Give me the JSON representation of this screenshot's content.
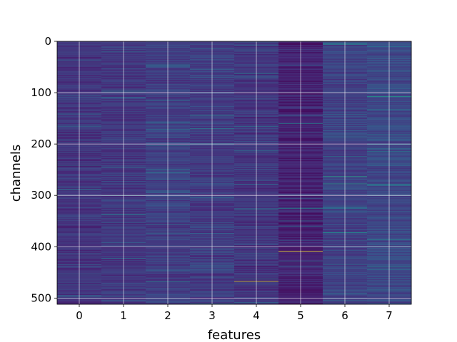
{
  "chart_data": {
    "type": "heatmap",
    "title": "",
    "xlabel": "features",
    "ylabel": "channels",
    "x_ticks": [
      "0",
      "1",
      "2",
      "3",
      "4",
      "5",
      "6",
      "7"
    ],
    "y_ticks": [
      "0",
      "100",
      "200",
      "300",
      "400",
      "500"
    ],
    "n_columns": 8,
    "n_rows": 512,
    "ylim": [
      0,
      512
    ],
    "y_inverted": true,
    "grid": true,
    "colormap": "viridis",
    "column_base_level": [
      0.16,
      0.17,
      0.19,
      0.18,
      0.16,
      0.1,
      0.2,
      0.22
    ],
    "highlights": [
      {
        "column": 4,
        "row": 467,
        "level": 0.95
      },
      {
        "column": 5,
        "row": 408,
        "level": 1.0
      },
      {
        "column": 6,
        "row": 263,
        "level": 0.6
      },
      {
        "column": 6,
        "row": 277,
        "level": 0.55
      },
      {
        "column": 6,
        "row": 372,
        "level": 0.5
      },
      {
        "column": 7,
        "row": 107,
        "level": 0.55
      },
      {
        "column": 7,
        "row": 278,
        "level": 0.5
      },
      {
        "column": 7,
        "row": 386,
        "level": 0.45
      },
      {
        "column": 3,
        "row": 170,
        "level": 0.45
      },
      {
        "column": 2,
        "row": 48,
        "level": 0.4
      },
      {
        "column": 4,
        "row": 62,
        "level": 0.45
      },
      {
        "column": 5,
        "row": 160,
        "level": 0.45
      },
      {
        "column": 5,
        "row": 325,
        "level": 0.45
      }
    ]
  },
  "colors": {
    "grid": "#ffffff",
    "spine": "#000000"
  }
}
